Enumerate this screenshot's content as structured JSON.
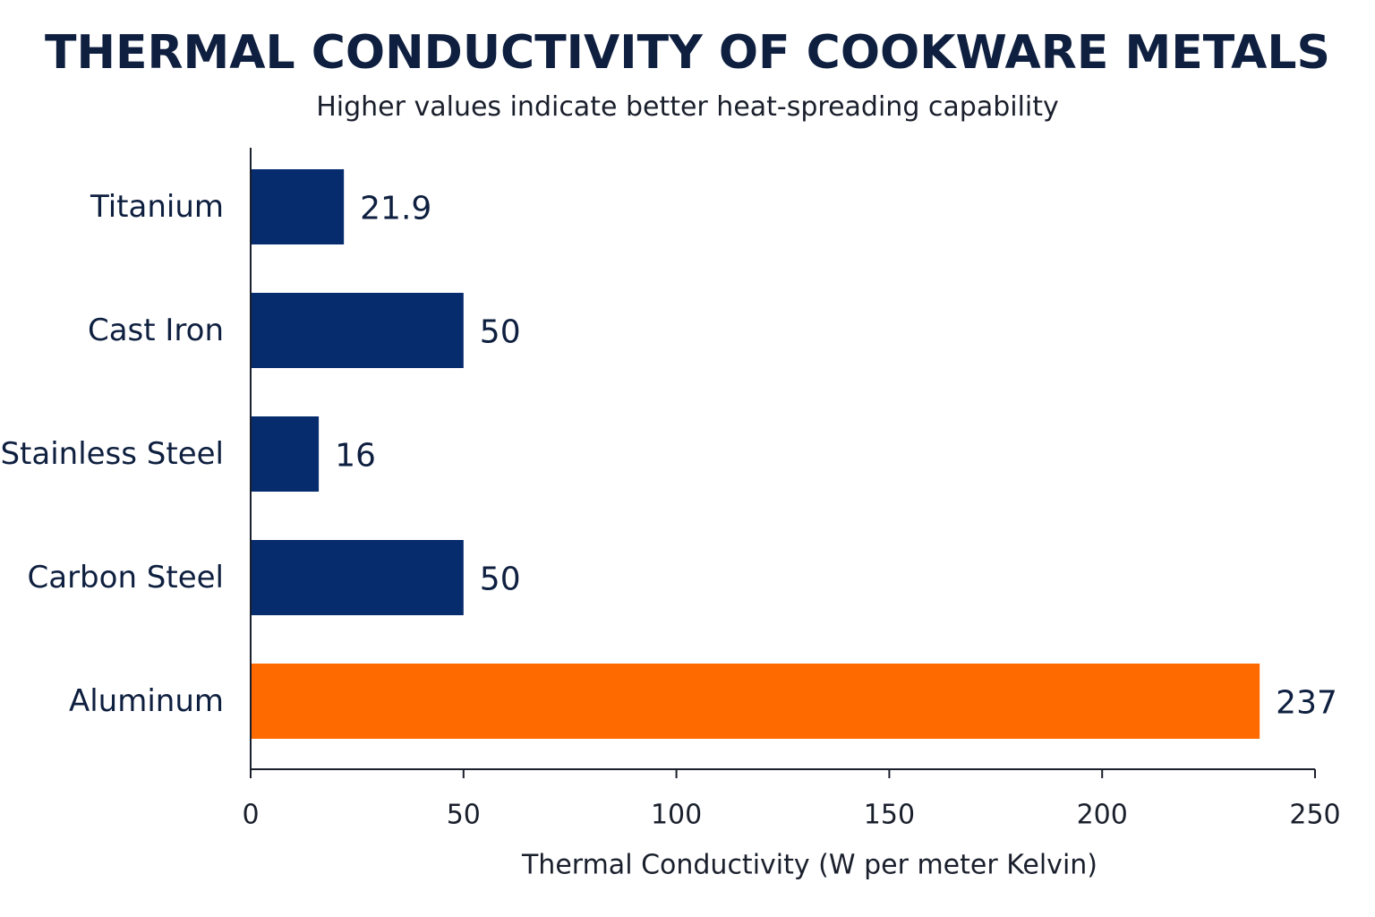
{
  "chart_data": {
    "type": "bar",
    "orientation": "horizontal",
    "title": "THERMAL CONDUCTIVITY OF COOKWARE METALS",
    "subtitle": "Higher values indicate better heat-spreading capability",
    "xlabel": "Thermal Conductivity (W per meter Kelvin)",
    "ylabel": "",
    "xlim": [
      0,
      250
    ],
    "ticks": [
      0,
      50,
      100,
      150,
      200,
      250
    ],
    "grid": false,
    "categories": [
      "Titanium",
      "Cast Iron",
      "Stainless Steel",
      "Carbon Steel",
      "Aluminum"
    ],
    "values": [
      21.9,
      50,
      16,
      50,
      237
    ],
    "value_labels": [
      "21.9",
      "50",
      "16",
      "50",
      "237"
    ],
    "colors": [
      "#062c6e",
      "#062c6e",
      "#062c6e",
      "#062c6e",
      "#ff6a00"
    ],
    "axis_color": "#1a1f2c"
  }
}
